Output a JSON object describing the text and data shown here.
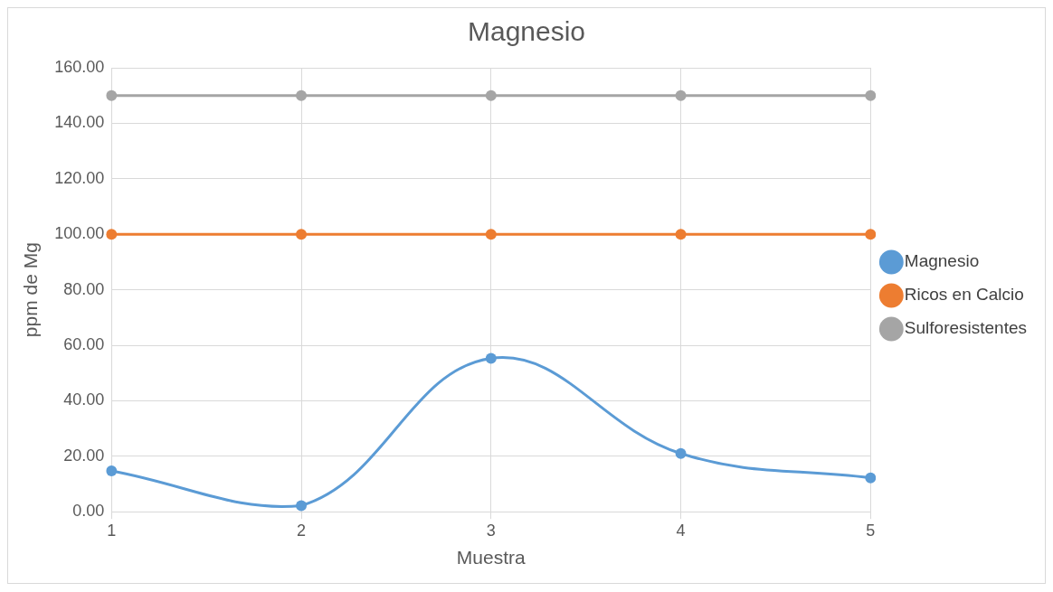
{
  "chart_data": {
    "type": "line",
    "title": "Magnesio",
    "xlabel": "Muestra",
    "ylabel": "ppm de Mg",
    "categories": [
      "1",
      "2",
      "3",
      "4",
      "5"
    ],
    "series": [
      {
        "name": "Magnesio",
        "color": "#5b9bd5",
        "values": [
          14.7,
          2.2,
          55.3,
          21.0,
          12.2
        ]
      },
      {
        "name": "Ricos en Calcio",
        "color": "#ed7d31",
        "values": [
          100,
          100,
          100,
          100,
          100
        ]
      },
      {
        "name": "Sulforesistentes",
        "color": "#a5a5a5",
        "values": [
          150,
          150,
          150,
          150,
          150
        ]
      }
    ],
    "ylim": [
      0,
      160
    ],
    "yticks": [
      {
        "value": 0,
        "label": "0.00"
      },
      {
        "value": 20,
        "label": "20.00"
      },
      {
        "value": 40,
        "label": "40.00"
      },
      {
        "value": 60,
        "label": "60.00"
      },
      {
        "value": 80,
        "label": "80.00"
      },
      {
        "value": 100,
        "label": "100.00"
      },
      {
        "value": 120,
        "label": "120.00"
      },
      {
        "value": 140,
        "label": "140.00"
      },
      {
        "value": 160,
        "label": "160.00"
      }
    ],
    "grid": true,
    "legend": "right",
    "marker": "circle",
    "line_style": "solid"
  }
}
